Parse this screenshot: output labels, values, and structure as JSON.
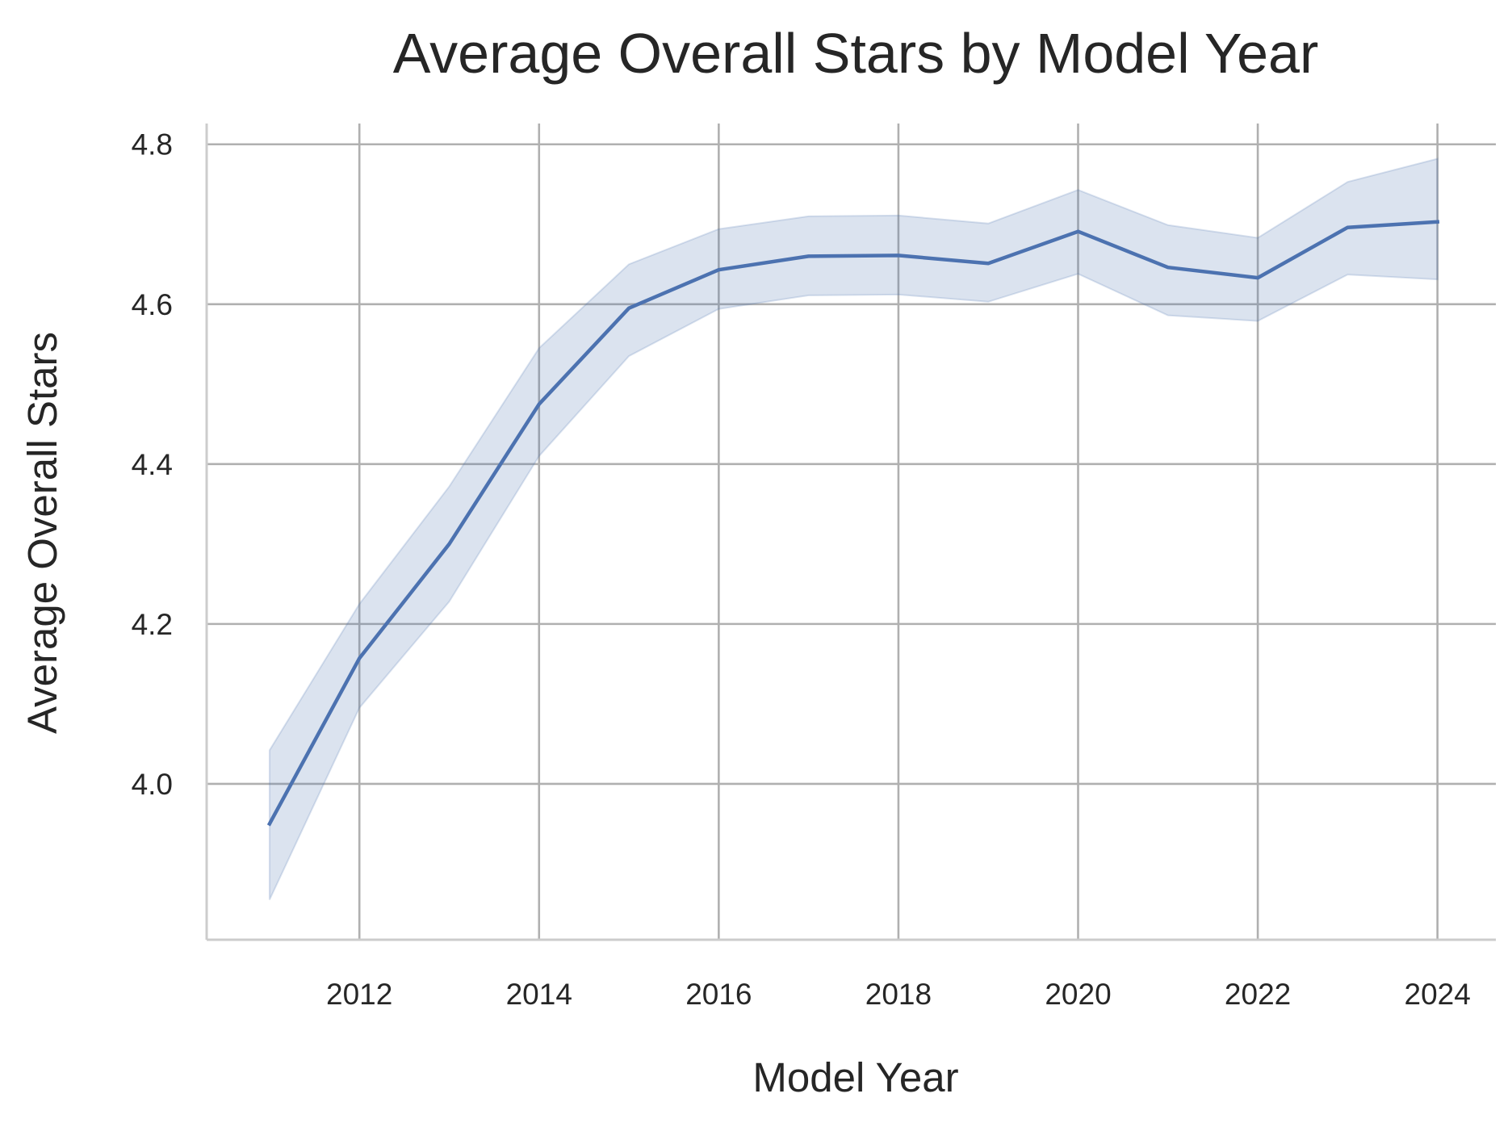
{
  "chart_data": {
    "type": "line",
    "title": "Average Overall Stars by Model Year",
    "xlabel": "Model Year",
    "ylabel": "Average Overall Stars",
    "x": [
      2011,
      2012,
      2013,
      2014,
      2015,
      2016,
      2017,
      2018,
      2019,
      2020,
      2021,
      2022,
      2023,
      2024
    ],
    "series": [
      {
        "values": [
          3.95,
          4.157,
          4.3,
          4.475,
          4.595,
          4.643,
          4.66,
          4.661,
          4.651,
          4.691,
          4.646,
          4.633,
          4.696,
          4.703
        ],
        "ci_lower": [
          3.855,
          4.095,
          4.228,
          4.41,
          4.535,
          4.594,
          4.611,
          4.612,
          4.603,
          4.638,
          4.586,
          4.579,
          4.637,
          4.631
        ],
        "ci_upper": [
          4.042,
          4.225,
          4.372,
          4.545,
          4.65,
          4.694,
          4.71,
          4.711,
          4.701,
          4.743,
          4.699,
          4.683,
          4.753,
          4.782
        ],
        "color": "#4c72b0"
      }
    ],
    "xticks": [
      2012,
      2014,
      2016,
      2018,
      2020,
      2022,
      2024
    ],
    "xtick_labels": [
      "2012",
      "2014",
      "2016",
      "2018",
      "2020",
      "2022",
      "2024"
    ],
    "yticks": [
      4.0,
      4.2,
      4.4,
      4.6,
      4.8
    ],
    "ytick_labels": [
      "4.0",
      "4.2",
      "4.4",
      "4.6",
      "4.8"
    ],
    "xlim": [
      2010.3,
      2024.65
    ],
    "ylim": [
      3.805,
      4.826
    ],
    "grid": true,
    "colors": {
      "line": "#4c72b0",
      "grid": "#b0b0b0",
      "spine": "#cccccc",
      "text": "#262626"
    }
  }
}
